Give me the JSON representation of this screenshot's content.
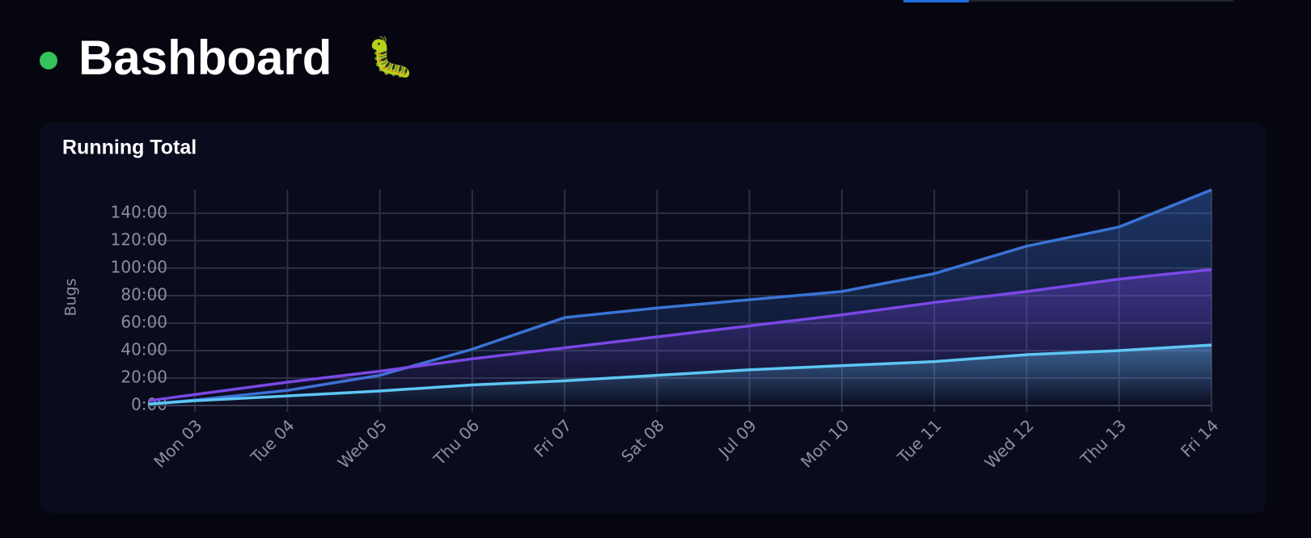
{
  "header": {
    "title": "Bashboard",
    "emoji": "🐛"
  },
  "chart_data": {
    "type": "area",
    "title": "Running Total",
    "y_label": "Bugs",
    "x": [
      2.5,
      3,
      4,
      5,
      6,
      7,
      8,
      9,
      10,
      11,
      12,
      13,
      14
    ],
    "xlim": [
      2.5,
      14
    ],
    "xticks": [
      {
        "value": 3,
        "label": "Mon 03"
      },
      {
        "value": 4,
        "label": "Tue 04"
      },
      {
        "value": 5,
        "label": "Wed 05"
      },
      {
        "value": 6,
        "label": "Thu 06"
      },
      {
        "value": 7,
        "label": "Fri 07"
      },
      {
        "value": 8,
        "label": "Sat 08"
      },
      {
        "value": 9,
        "label": "Jul 09"
      },
      {
        "value": 10,
        "label": "Mon 10"
      },
      {
        "value": 11,
        "label": "Tue 11"
      },
      {
        "value": 12,
        "label": "Wed 12"
      },
      {
        "value": 13,
        "label": "Thu 13"
      },
      {
        "value": 14,
        "label": "Fri 14"
      }
    ],
    "ylim": [
      0,
      157
    ],
    "yticks": [
      {
        "value": 0,
        "label": "0:00"
      },
      {
        "value": 20,
        "label": "20:00"
      },
      {
        "value": 40,
        "label": "40:00"
      },
      {
        "value": 60,
        "label": "60:00"
      },
      {
        "value": 80,
        "label": "80:00"
      },
      {
        "value": 100,
        "label": "100:00"
      },
      {
        "value": 120,
        "label": "120:00"
      },
      {
        "value": 140,
        "label": "140:00"
      }
    ],
    "grid": true,
    "series": [
      {
        "color": "#3a74d6",
        "values": [
          1,
          4,
          11,
          22,
          41,
          64,
          71,
          77,
          83,
          96,
          116,
          130,
          157
        ]
      },
      {
        "color": "#7a48e6",
        "values": [
          3.5,
          8,
          17,
          25,
          34,
          42,
          50,
          58,
          66,
          75,
          83,
          92,
          99
        ]
      },
      {
        "color": "#5ec6f4",
        "values": [
          1,
          3.5,
          7,
          10.6,
          15,
          18,
          22,
          26,
          29,
          32,
          37,
          40,
          44
        ]
      }
    ]
  }
}
